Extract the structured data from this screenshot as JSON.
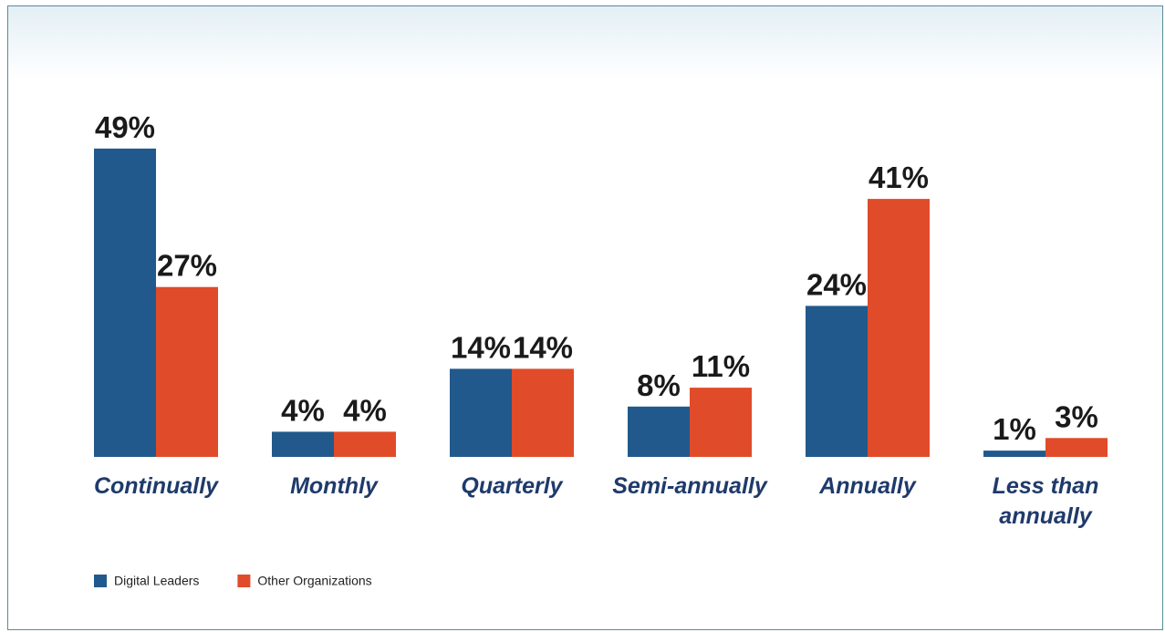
{
  "chart_data": {
    "type": "bar",
    "categories": [
      "Continually",
      "Monthly",
      "Quarterly",
      "Semi-annually",
      "Annually",
      "Less than annually"
    ],
    "series": [
      {
        "name": "Digital Leaders",
        "color": "#22598c",
        "values": [
          49,
          4,
          14,
          8,
          24,
          1
        ],
        "value_labels": [
          "49%",
          "4%",
          "14%",
          "8%",
          "24%",
          "1%"
        ]
      },
      {
        "name": "Other Organizations",
        "color": "#e04b2a",
        "values": [
          27,
          4,
          14,
          11,
          41,
          3
        ],
        "value_labels": [
          "27%",
          "4%",
          "14%",
          "11%",
          "41%",
          "3%"
        ]
      }
    ],
    "legend": "bottom-left"
  }
}
